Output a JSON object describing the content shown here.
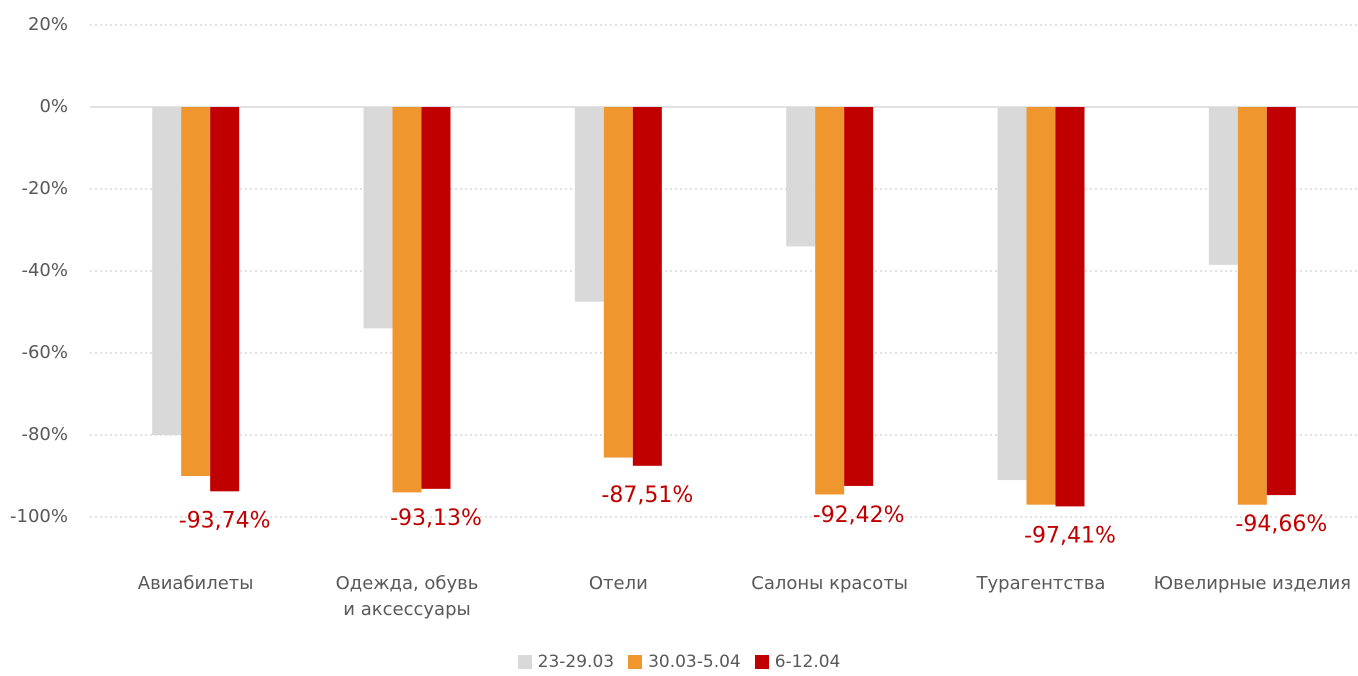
{
  "chart_data": {
    "type": "bar",
    "categories": [
      "Авиабилеты",
      "Одежда, обувь\nи аксессуары",
      "Отели",
      "Салоны красоты",
      "Турагентства",
      "Ювелирные изделия"
    ],
    "series": [
      {
        "name": "23-29.03",
        "color": "#d9d9d9",
        "values": [
          -80,
          -54,
          -47.5,
          -34,
          -91,
          -38.5
        ]
      },
      {
        "name": "30.03-5.04",
        "color": "#f0962f",
        "values": [
          -90,
          -94,
          -85.5,
          -94.5,
          -97,
          -97
        ]
      },
      {
        "name": "6-12.04",
        "color": "#c00000",
        "values": [
          -93.74,
          -93.13,
          -87.51,
          -92.42,
          -97.41,
          -94.66
        ],
        "value_labels": [
          "-93,74%",
          "-93,13%",
          "-87,51%",
          "-92,42%",
          "-97,41%",
          "-94,66%"
        ]
      }
    ],
    "ylim": [
      -100,
      20
    ],
    "yticks": [
      {
        "value": 20,
        "label": "20%"
      },
      {
        "value": 0,
        "label": "0%"
      },
      {
        "value": -20,
        "label": "-20%"
      },
      {
        "value": -40,
        "label": "-40%"
      },
      {
        "value": -60,
        "label": "-60%"
      },
      {
        "value": -80,
        "label": "-80%"
      },
      {
        "value": -100,
        "label": "-100%"
      }
    ],
    "grid": true,
    "legend": "bottom"
  }
}
